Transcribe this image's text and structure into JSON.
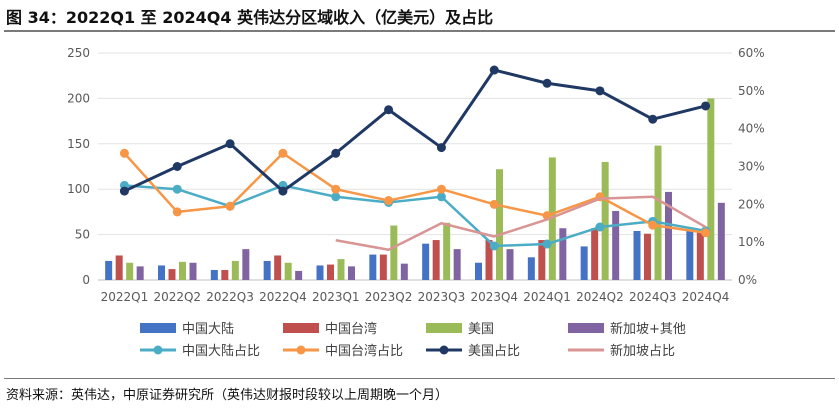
{
  "title": "图 34：2022Q1 至 2024Q4 英伟达分区域收入（亿美元）及占比",
  "source": "资料来源：英伟达，中原证券研究所（英伟达财报时段较以上周期晚一个月）",
  "chart_data": {
    "type": "bar+line",
    "categories": [
      "2022Q1",
      "2022Q2",
      "2022Q3",
      "2022Q4",
      "2023Q1",
      "2023Q2",
      "2023Q3",
      "2023Q4",
      "2024Q1",
      "2024Q2",
      "2024Q3",
      "2024Q4"
    ],
    "y_left": {
      "min": 0,
      "max": 250,
      "step": 50,
      "ticks": [
        "0",
        "50",
        "100",
        "150",
        "200",
        "250"
      ]
    },
    "y_right": {
      "min": 0,
      "max": 0.6,
      "step": 0.1,
      "ticks": [
        "0%",
        "10%",
        "20%",
        "30%",
        "40%",
        "50%",
        "60%"
      ]
    },
    "bar_series": [
      {
        "name": "中国大陆",
        "color": "#4472C4",
        "values": [
          21,
          16,
          11,
          21,
          16,
          28,
          40,
          19,
          25,
          37,
          54,
          55
        ]
      },
      {
        "name": "中国台湾",
        "color": "#C0504D",
        "values": [
          27,
          12,
          11,
          27,
          17,
          28,
          44,
          44,
          44,
          57,
          51,
          56
        ]
      },
      {
        "name": "美国",
        "color": "#9BBB59",
        "values": [
          19,
          20,
          21,
          19,
          23,
          60,
          63,
          122,
          135,
          130,
          148,
          200
        ]
      },
      {
        "name": "新加坡+其他",
        "color": "#8064A2",
        "values": [
          15,
          19,
          34,
          10,
          15,
          18,
          34,
          34,
          57,
          76,
          97,
          85
        ]
      }
    ],
    "line_series": [
      {
        "name": "中国大陆占比",
        "color": "#4BACC6",
        "values": [
          0.25,
          0.24,
          0.195,
          0.25,
          0.22,
          0.205,
          0.22,
          0.09,
          0.095,
          0.14,
          0.155,
          0.13
        ]
      },
      {
        "name": "中国台湾占比",
        "color": "#F79646",
        "values": [
          0.335,
          0.18,
          0.195,
          0.335,
          0.24,
          0.21,
          0.24,
          0.2,
          0.17,
          0.22,
          0.145,
          0.125
        ]
      },
      {
        "name": "美国占比",
        "color": "#1F3864",
        "values": [
          0.235,
          0.3,
          0.36,
          0.235,
          0.335,
          0.45,
          0.35,
          0.555,
          0.52,
          0.5,
          0.425,
          0.46
        ]
      },
      {
        "name": "新加坡占比",
        "color": "#D99594",
        "start_index": 4,
        "values": [
          null,
          null,
          null,
          null,
          0.105,
          0.08,
          0.15,
          0.115,
          0.16,
          0.215,
          0.22,
          0.14
        ]
      }
    ],
    "legend": [
      "中国大陆",
      "中国台湾",
      "美国",
      "新加坡+其他",
      "中国大陆占比",
      "中国台湾占比",
      "美国占比",
      "新加坡占比"
    ],
    "legend_position": "bottom"
  }
}
